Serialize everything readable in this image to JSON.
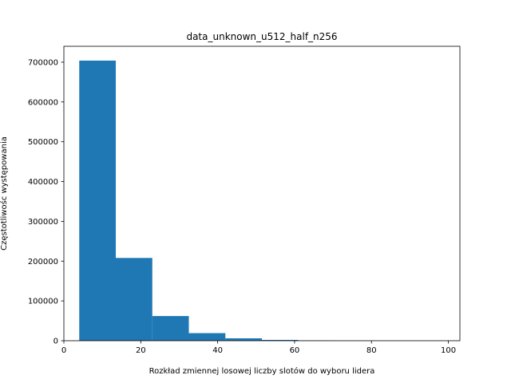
{
  "chart_data": {
    "type": "bar",
    "title": "data_unknown_u512_half_n256",
    "xlabel": "Rozkład zmiennej losowej liczby slotów do wyboru lidera",
    "ylabel": "Częstotliwośc występowania",
    "xlim": [
      0,
      103
    ],
    "ylim": [
      0,
      740000
    ],
    "grid": false,
    "bins": [
      {
        "x0": 4.0,
        "x1": 13.5,
        "value": 704000
      },
      {
        "x0": 13.5,
        "x1": 23.0,
        "value": 208000
      },
      {
        "x0": 23.0,
        "x1": 32.5,
        "value": 62000
      },
      {
        "x0": 32.5,
        "x1": 42.0,
        "value": 19000
      },
      {
        "x0": 42.0,
        "x1": 51.5,
        "value": 6000
      },
      {
        "x0": 51.5,
        "x1": 61.0,
        "value": 2000
      },
      {
        "x0": 61.0,
        "x1": 70.5,
        "value": 600
      },
      {
        "x0": 70.5,
        "x1": 80.0,
        "value": 200
      },
      {
        "x0": 80.0,
        "x1": 89.5,
        "value": 60
      },
      {
        "x0": 89.5,
        "x1": 99.0,
        "value": 20
      }
    ],
    "xticks": [
      {
        "value": 0,
        "label": "0"
      },
      {
        "value": 20,
        "label": "20"
      },
      {
        "value": 40,
        "label": "40"
      },
      {
        "value": 60,
        "label": "60"
      },
      {
        "value": 80,
        "label": "80"
      },
      {
        "value": 100,
        "label": "100"
      }
    ],
    "yticks": [
      {
        "value": 0,
        "label": "0"
      },
      {
        "value": 100000,
        "label": "100000"
      },
      {
        "value": 200000,
        "label": "200000"
      },
      {
        "value": 300000,
        "label": "300000"
      },
      {
        "value": 400000,
        "label": "400000"
      },
      {
        "value": 500000,
        "label": "500000"
      },
      {
        "value": 600000,
        "label": "600000"
      },
      {
        "value": 700000,
        "label": "700000"
      }
    ],
    "bar_color": "#1f77b4"
  }
}
